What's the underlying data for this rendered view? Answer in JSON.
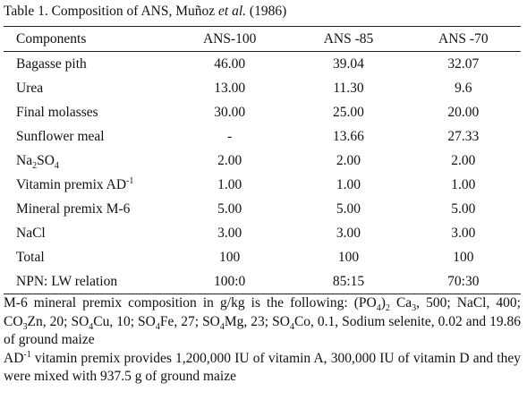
{
  "title": [
    {
      "text": "Table 1. Composition of ANS, Muñoz "
    },
    {
      "italic": "et al."
    },
    {
      "text": " (1986)"
    }
  ],
  "table": {
    "header": [
      "Components",
      "ANS-100",
      "ANS -85",
      "ANS -70"
    ],
    "rows": [
      [
        "Bagasse pith",
        "46.00",
        "39.04",
        "32.07"
      ],
      [
        "Urea",
        "13.00",
        "11.30",
        "9.6"
      ],
      [
        "Final molasses",
        "30.00",
        "25.00",
        "20.00"
      ],
      [
        "Sunflower meal",
        "-",
        "13.66",
        "27.33"
      ],
      [
        [
          {
            "text": "Na"
          },
          {
            "sub": "2"
          },
          {
            "text": "SO"
          },
          {
            "sub": "4"
          }
        ],
        "2.00",
        "2.00",
        "2.00"
      ],
      [
        [
          {
            "text": "Vitamin premix AD"
          },
          {
            "sup": "-1"
          }
        ],
        "1.00",
        "1.00",
        "1.00"
      ],
      [
        "Mineral premix M-6",
        "5.00",
        "5.00",
        "5.00"
      ],
      [
        "NaCl",
        "3.00",
        "3.00",
        "3.00"
      ],
      [
        "Total",
        "100",
        "100",
        "100"
      ],
      [
        "NPN: LW relation",
        "100:0",
        "85:15",
        "70:30"
      ]
    ]
  },
  "notes": [
    [
      {
        "text": "M-6 mineral premix composition in g/kg is the following: (PO"
      },
      {
        "sub": "4"
      },
      {
        "text": ")"
      },
      {
        "sub": "2"
      },
      {
        "text": " Ca"
      },
      {
        "sub": "3"
      },
      {
        "text": ", 500; NaCl, 400; CO"
      },
      {
        "sub": "3"
      },
      {
        "text": "Zn, 20; SO"
      },
      {
        "sub": "4"
      },
      {
        "text": "Cu, 10; SO"
      },
      {
        "sub": "4"
      },
      {
        "text": "Fe, 27; SO"
      },
      {
        "sub": "4"
      },
      {
        "text": "Mg, 23; SO"
      },
      {
        "sub": "4"
      },
      {
        "text": "Co, 0.1, Sodium selenite, 0.02 and 19.86 of ground maize"
      }
    ],
    [
      {
        "text": "AD"
      },
      {
        "sup": "-1"
      },
      {
        "text": " vitamin premix provides 1,200,000 IU of vitamin A, 300,000 IU of vitamin D and they were mixed with 937.5 g of ground maize"
      }
    ]
  ]
}
